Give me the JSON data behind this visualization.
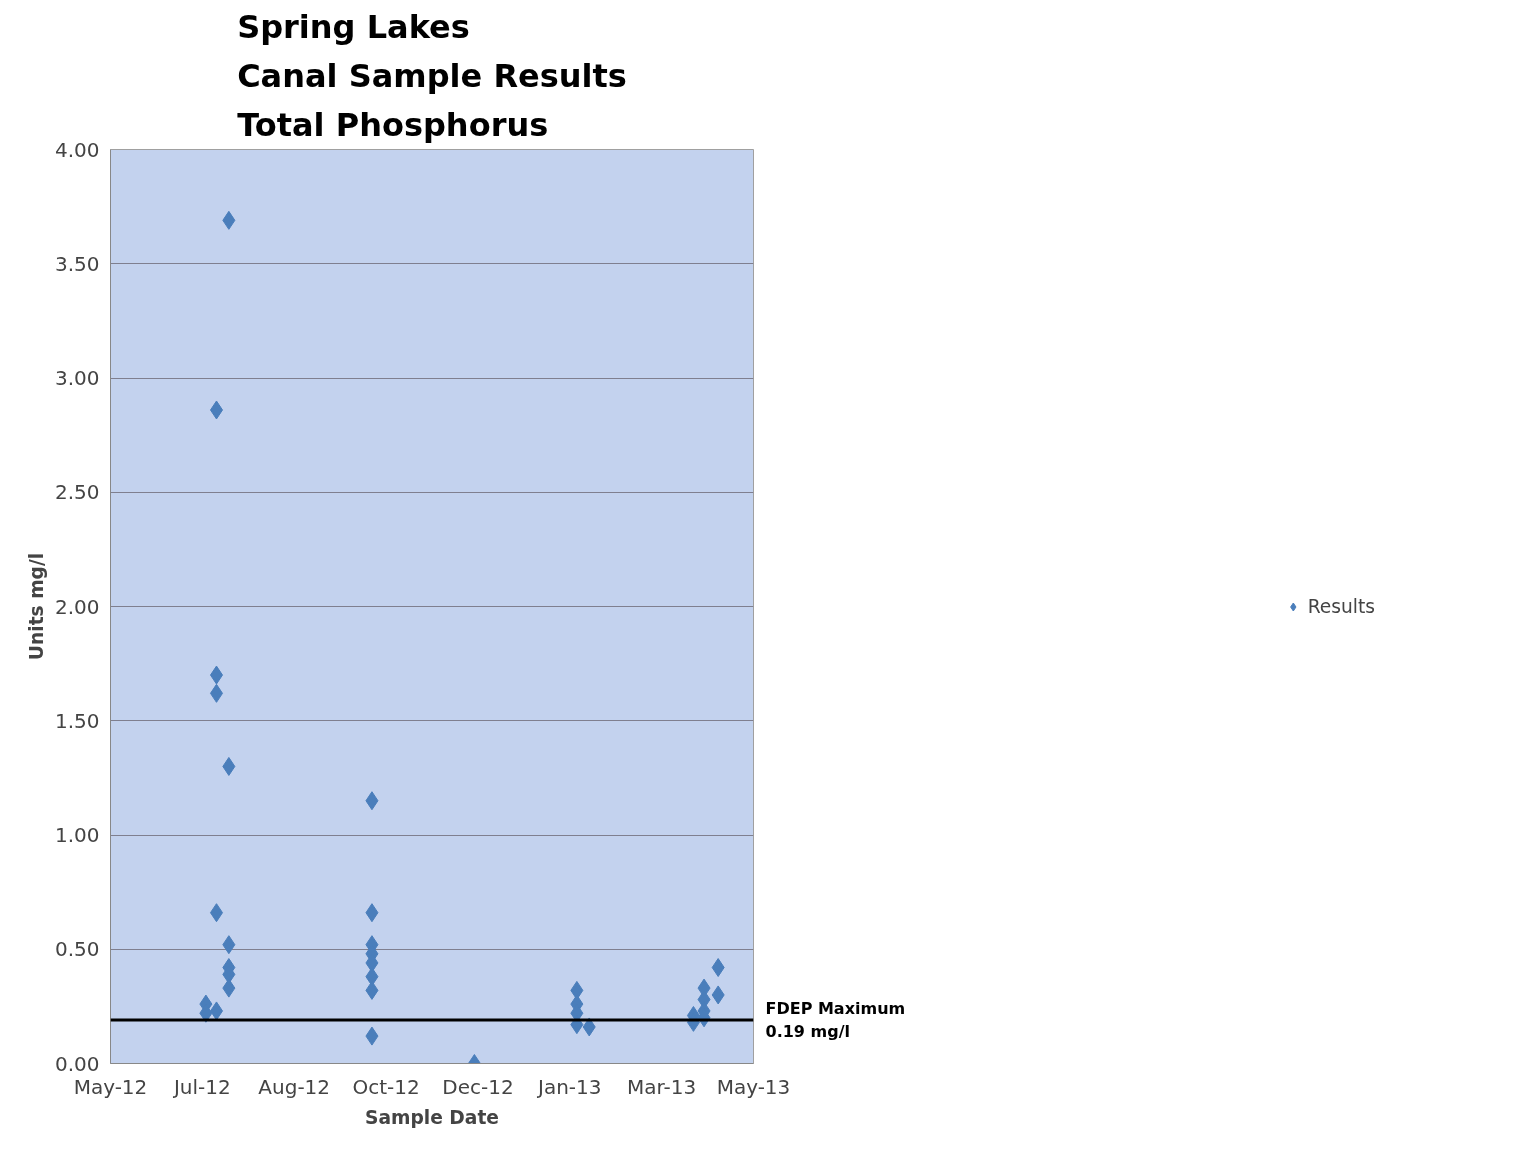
{
  "chart_data": {
    "type": "scatter",
    "title": "Spring Lakes\nCanal Sample Results\nTotal Phosphorus",
    "xlabel": "Sample Date",
    "ylabel": "Units mg/l",
    "xlim": [
      "2012-05-14",
      "2013-05-13"
    ],
    "xticks": [
      {
        "value": "2012-05-14",
        "label": "May-12"
      },
      {
        "value": "2012-07-05",
        "label": "Jul-12"
      },
      {
        "value": "2012-08-26",
        "label": "Aug-12"
      },
      {
        "value": "2012-10-17",
        "label": "Oct-12"
      },
      {
        "value": "2012-12-08",
        "label": "Dec-12"
      },
      {
        "value": "2013-01-29",
        "label": "Jan-13"
      },
      {
        "value": "2013-03-22",
        "label": "Mar-13"
      },
      {
        "value": "2013-05-13",
        "label": "May-13"
      }
    ],
    "ylim": [
      0,
      4
    ],
    "yticks": [
      {
        "value": 0,
        "label": "0.00"
      },
      {
        "value": 0.5,
        "label": "0.50"
      },
      {
        "value": 1,
        "label": "1.00"
      },
      {
        "value": 1.5,
        "label": "1.50"
      },
      {
        "value": 2,
        "label": "2.00"
      },
      {
        "value": 2.5,
        "label": "2.50"
      },
      {
        "value": 3,
        "label": "3.00"
      },
      {
        "value": 3.5,
        "label": "3.50"
      },
      {
        "value": 4,
        "label": "4.00"
      }
    ],
    "grid": "y",
    "legend": "right",
    "marker": "diamond",
    "series": [
      {
        "name": "Results",
        "color": "#4a7ebb",
        "x": [
          "2012-07-07",
          "2012-07-07",
          "2012-07-13",
          "2012-07-13",
          "2012-07-13",
          "2012-07-13",
          "2012-07-13",
          "2012-07-20",
          "2012-07-20",
          "2012-07-20",
          "2012-07-20",
          "2012-07-20",
          "2012-07-20",
          "2012-10-09",
          "2012-10-09",
          "2012-10-09",
          "2012-10-09",
          "2012-10-09",
          "2012-10-09",
          "2012-10-09",
          "2012-10-09",
          "2012-12-06",
          "2013-02-02",
          "2013-02-02",
          "2013-02-02",
          "2013-02-02",
          "2013-02-09",
          "2013-04-09",
          "2013-04-09",
          "2013-04-15",
          "2013-04-15",
          "2013-04-15",
          "2013-04-15",
          "2013-04-23",
          "2013-04-23"
        ],
        "values": [
          0.26,
          0.22,
          2.86,
          1.7,
          1.62,
          0.66,
          0.23,
          3.69,
          1.3,
          0.52,
          0.42,
          0.39,
          0.33,
          1.15,
          0.66,
          0.52,
          0.48,
          0.44,
          0.38,
          0.32,
          0.12,
          0.0,
          0.32,
          0.26,
          0.22,
          0.17,
          0.16,
          0.21,
          0.18,
          0.33,
          0.28,
          0.23,
          0.2,
          0.42,
          0.3
        ]
      }
    ],
    "ref_lines": [
      {
        "axis": "y",
        "value": 0.19,
        "label": "FDEP Maximum\n0.19 mg/l",
        "color": "#000000",
        "line_style": "solid"
      }
    ]
  }
}
